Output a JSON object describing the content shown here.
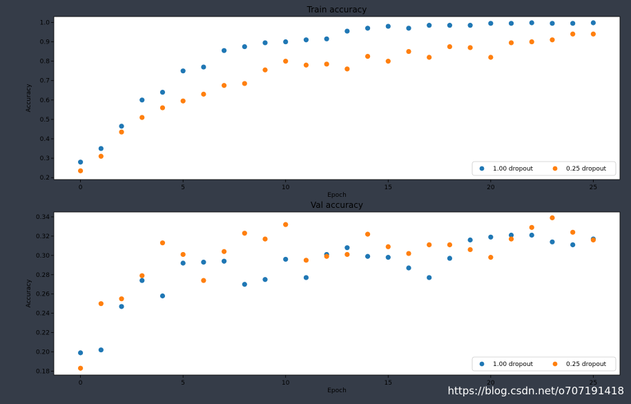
{
  "chart_data": [
    {
      "type": "scatter",
      "title": "Train accuracy",
      "xlabel": "Epoch",
      "ylabel": "Accuracy",
      "xlim": [
        -1.3,
        26.3
      ],
      "ylim": [
        0.19,
        1.03
      ],
      "xticks": [
        0,
        5,
        10,
        15,
        20,
        25
      ],
      "yticks": [
        0.2,
        0.3,
        0.4,
        0.5,
        0.6,
        0.7,
        0.8,
        0.9,
        1.0
      ],
      "ytick_labels": [
        "0.2",
        "0.3",
        "0.4",
        "0.5",
        "0.6",
        "0.7",
        "0.8",
        "0.9",
        "1.0"
      ],
      "legend_position": "lower-right",
      "series": [
        {
          "name": "1.00 dropout",
          "color": "#1f77b4",
          "x": [
            0,
            1,
            2,
            3,
            4,
            5,
            6,
            7,
            8,
            9,
            10,
            11,
            12,
            13,
            14,
            15,
            16,
            17,
            18,
            19,
            20,
            21,
            22,
            23,
            24,
            25
          ],
          "y": [
            0.28,
            0.35,
            0.465,
            0.6,
            0.64,
            0.75,
            0.77,
            0.855,
            0.875,
            0.895,
            0.9,
            0.91,
            0.915,
            0.955,
            0.97,
            0.98,
            0.97,
            0.985,
            0.985,
            0.985,
            0.995,
            0.995,
            0.998,
            0.995,
            0.995,
            0.998
          ]
        },
        {
          "name": "0.25 dropout",
          "color": "#ff7f0e",
          "x": [
            0,
            1,
            2,
            3,
            4,
            5,
            6,
            7,
            8,
            9,
            10,
            11,
            12,
            13,
            14,
            15,
            16,
            17,
            18,
            19,
            20,
            21,
            22,
            23,
            24,
            25
          ],
          "y": [
            0.235,
            0.31,
            0.435,
            0.51,
            0.56,
            0.595,
            0.63,
            0.675,
            0.685,
            0.755,
            0.8,
            0.78,
            0.785,
            0.76,
            0.825,
            0.8,
            0.85,
            0.82,
            0.875,
            0.87,
            0.82,
            0.895,
            0.9,
            0.91,
            0.94,
            0.94
          ]
        }
      ]
    },
    {
      "type": "scatter",
      "title": "Val accuracy",
      "xlabel": "Epoch",
      "ylabel": "Accuracy",
      "xlim": [
        -1.3,
        26.3
      ],
      "ylim": [
        0.176,
        0.345
      ],
      "xticks": [
        0,
        5,
        10,
        15,
        20,
        25
      ],
      "yticks": [
        0.18,
        0.2,
        0.22,
        0.24,
        0.26,
        0.28,
        0.3,
        0.32,
        0.34
      ],
      "ytick_labels": [
        "0.18",
        "0.20",
        "0.22",
        "0.24",
        "0.26",
        "0.28",
        "0.30",
        "0.32",
        "0.34"
      ],
      "legend_position": "lower-right",
      "series": [
        {
          "name": "1.00 dropout",
          "color": "#1f77b4",
          "x": [
            0,
            1,
            2,
            3,
            4,
            5,
            6,
            7,
            8,
            9,
            10,
            11,
            12,
            13,
            14,
            15,
            16,
            17,
            18,
            19,
            20,
            21,
            22,
            23,
            24,
            25
          ],
          "y": [
            0.199,
            0.202,
            0.247,
            0.274,
            0.258,
            0.292,
            0.293,
            0.294,
            0.27,
            0.275,
            0.296,
            0.277,
            0.301,
            0.308,
            0.299,
            0.298,
            0.287,
            0.277,
            0.297,
            0.316,
            0.319,
            0.321,
            0.321,
            0.314,
            0.311,
            0.317
          ]
        },
        {
          "name": "0.25 dropout",
          "color": "#ff7f0e",
          "x": [
            0,
            1,
            2,
            3,
            4,
            5,
            6,
            7,
            8,
            9,
            10,
            11,
            12,
            13,
            14,
            15,
            16,
            17,
            18,
            19,
            20,
            21,
            22,
            23,
            24,
            25
          ],
          "y": [
            0.183,
            0.25,
            0.255,
            0.279,
            0.313,
            0.301,
            0.274,
            0.304,
            0.323,
            0.317,
            0.332,
            0.295,
            0.299,
            0.301,
            0.322,
            0.309,
            0.302,
            0.311,
            0.311,
            0.306,
            0.298,
            0.317,
            0.329,
            0.339,
            0.324,
            0.316
          ]
        }
      ]
    }
  ],
  "watermark": "https://blog.csdn.net/o707191418"
}
